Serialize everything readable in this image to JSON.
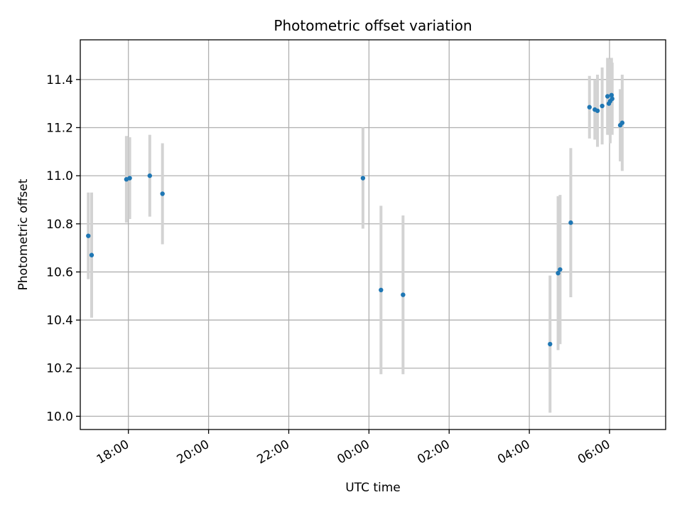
{
  "chart_data": {
    "type": "scatter",
    "title": "Photometric offset variation",
    "xlabel": "UTC time",
    "ylabel": "Photometric offset",
    "x_scale": "time",
    "x_start": "2024-01-01T16:48:00",
    "x_end": "2024-01-02T07:24:00",
    "x_ticks": [
      {
        "t": "2024-01-01T18:00:00",
        "label": "18:00"
      },
      {
        "t": "2024-01-01T20:00:00",
        "label": "20:00"
      },
      {
        "t": "2024-01-01T22:00:00",
        "label": "22:00"
      },
      {
        "t": "2024-01-02T00:00:00",
        "label": "00:00"
      },
      {
        "t": "2024-01-02T02:00:00",
        "label": "02:00"
      },
      {
        "t": "2024-01-02T04:00:00",
        "label": "04:00"
      },
      {
        "t": "2024-01-02T06:00:00",
        "label": "06:00"
      }
    ],
    "ylim": [
      9.945,
      11.565
    ],
    "y_ticks": [
      10.0,
      10.2,
      10.4,
      10.6,
      10.8,
      11.0,
      11.2,
      11.4
    ],
    "y_tick_labels": [
      "10.0",
      "10.2",
      "10.4",
      "10.6",
      "10.8",
      "11.0",
      "11.2",
      "11.4"
    ],
    "grid": true,
    "marker_color": "#1f77b4",
    "errorbar_color": "#d3d3d3",
    "series": [
      {
        "points": [
          {
            "x": "2024-01-01T17:00:00",
            "y": 10.75,
            "err": 0.18
          },
          {
            "x": "2024-01-01T17:05:00",
            "y": 10.67,
            "err": 0.26
          },
          {
            "x": "2024-01-01T17:57:00",
            "y": 10.985,
            "err": 0.18
          },
          {
            "x": "2024-01-01T18:02:00",
            "y": 10.99,
            "err": 0.17
          },
          {
            "x": "2024-01-01T18:32:00",
            "y": 11.0,
            "err": 0.17
          },
          {
            "x": "2024-01-01T18:51:00",
            "y": 10.925,
            "err": 0.21
          },
          {
            "x": "2024-01-01T23:51:00",
            "y": 10.99,
            "err": 0.21
          },
          {
            "x": "2024-01-02T00:18:00",
            "y": 10.525,
            "err": 0.35
          },
          {
            "x": "2024-01-02T00:51:00",
            "y": 10.505,
            "err": 0.33
          },
          {
            "x": "2024-01-02T04:31:00",
            "y": 10.3,
            "err": 0.285
          },
          {
            "x": "2024-01-02T04:43:00",
            "y": 10.595,
            "err": 0.32
          },
          {
            "x": "2024-01-02T04:46:00",
            "y": 10.61,
            "err": 0.31
          },
          {
            "x": "2024-01-02T05:02:00",
            "y": 10.805,
            "err": 0.31
          },
          {
            "x": "2024-01-02T05:30:00",
            "y": 11.285,
            "err": 0.13
          },
          {
            "x": "2024-01-02T05:38:00",
            "y": 11.275,
            "err": 0.125
          },
          {
            "x": "2024-01-02T05:42:00",
            "y": 11.27,
            "err": 0.15
          },
          {
            "x": "2024-01-02T05:49:00",
            "y": 11.29,
            "err": 0.16
          },
          {
            "x": "2024-01-02T05:57:00",
            "y": 11.33,
            "err": 0.16
          },
          {
            "x": "2024-01-02T05:59:00",
            "y": 11.3,
            "err": 0.13
          },
          {
            "x": "2024-01-02T06:01:00",
            "y": 11.31,
            "err": 0.175
          },
          {
            "x": "2024-01-02T06:03:00",
            "y": 11.335,
            "err": 0.155
          },
          {
            "x": "2024-01-02T06:04:00",
            "y": 11.32,
            "err": 0.15
          },
          {
            "x": "2024-01-02T06:16:00",
            "y": 11.21,
            "err": 0.15
          },
          {
            "x": "2024-01-02T06:19:00",
            "y": 11.22,
            "err": 0.2
          }
        ]
      }
    ]
  }
}
